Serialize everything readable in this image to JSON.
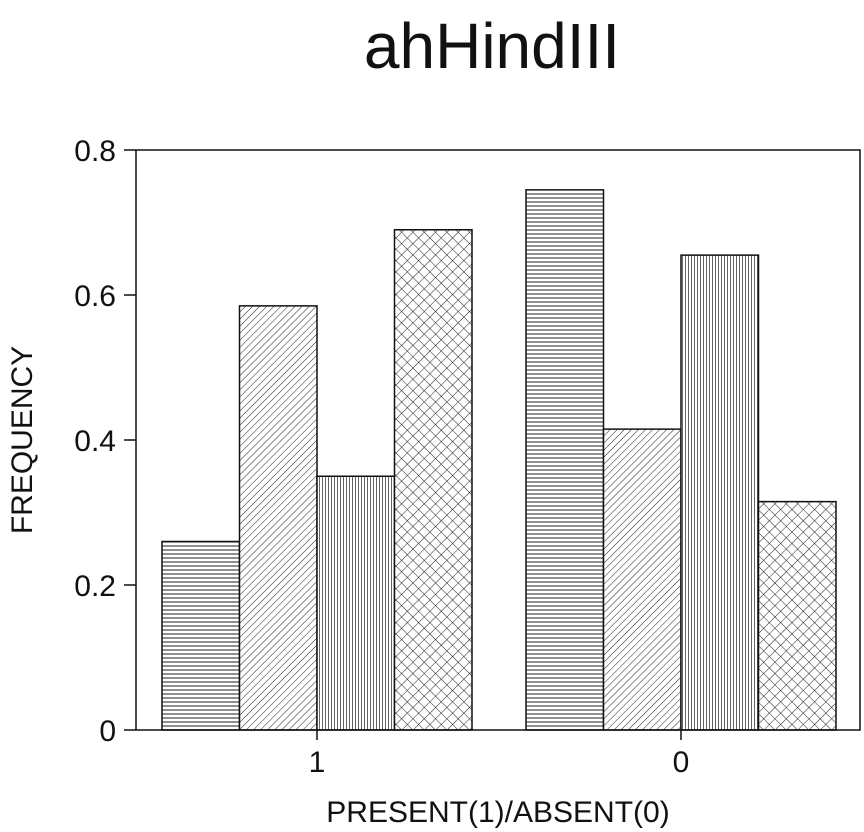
{
  "chart_data": {
    "type": "bar",
    "title": "ahHindIII",
    "xlabel": "PRESENT(1)/ABSENT(0)",
    "ylabel": "FREQUENCY",
    "categories": [
      "1",
      "0"
    ],
    "ylim": [
      0,
      0.8
    ],
    "yticks": [
      0,
      0.2,
      0.4,
      0.6,
      0.8
    ],
    "ytick_labels": [
      "0",
      "0.2",
      "0.4",
      "0.6",
      "0.8"
    ],
    "grid": false,
    "legend": "none",
    "series": [
      {
        "pattern": "horizontal-lines",
        "values": [
          0.26,
          0.745
        ]
      },
      {
        "pattern": "diagonal-lines",
        "values": [
          0.585,
          0.415
        ]
      },
      {
        "pattern": "vertical-lines",
        "values": [
          0.35,
          0.655
        ]
      },
      {
        "pattern": "crosshatch",
        "values": [
          0.69,
          0.315
        ]
      }
    ]
  }
}
